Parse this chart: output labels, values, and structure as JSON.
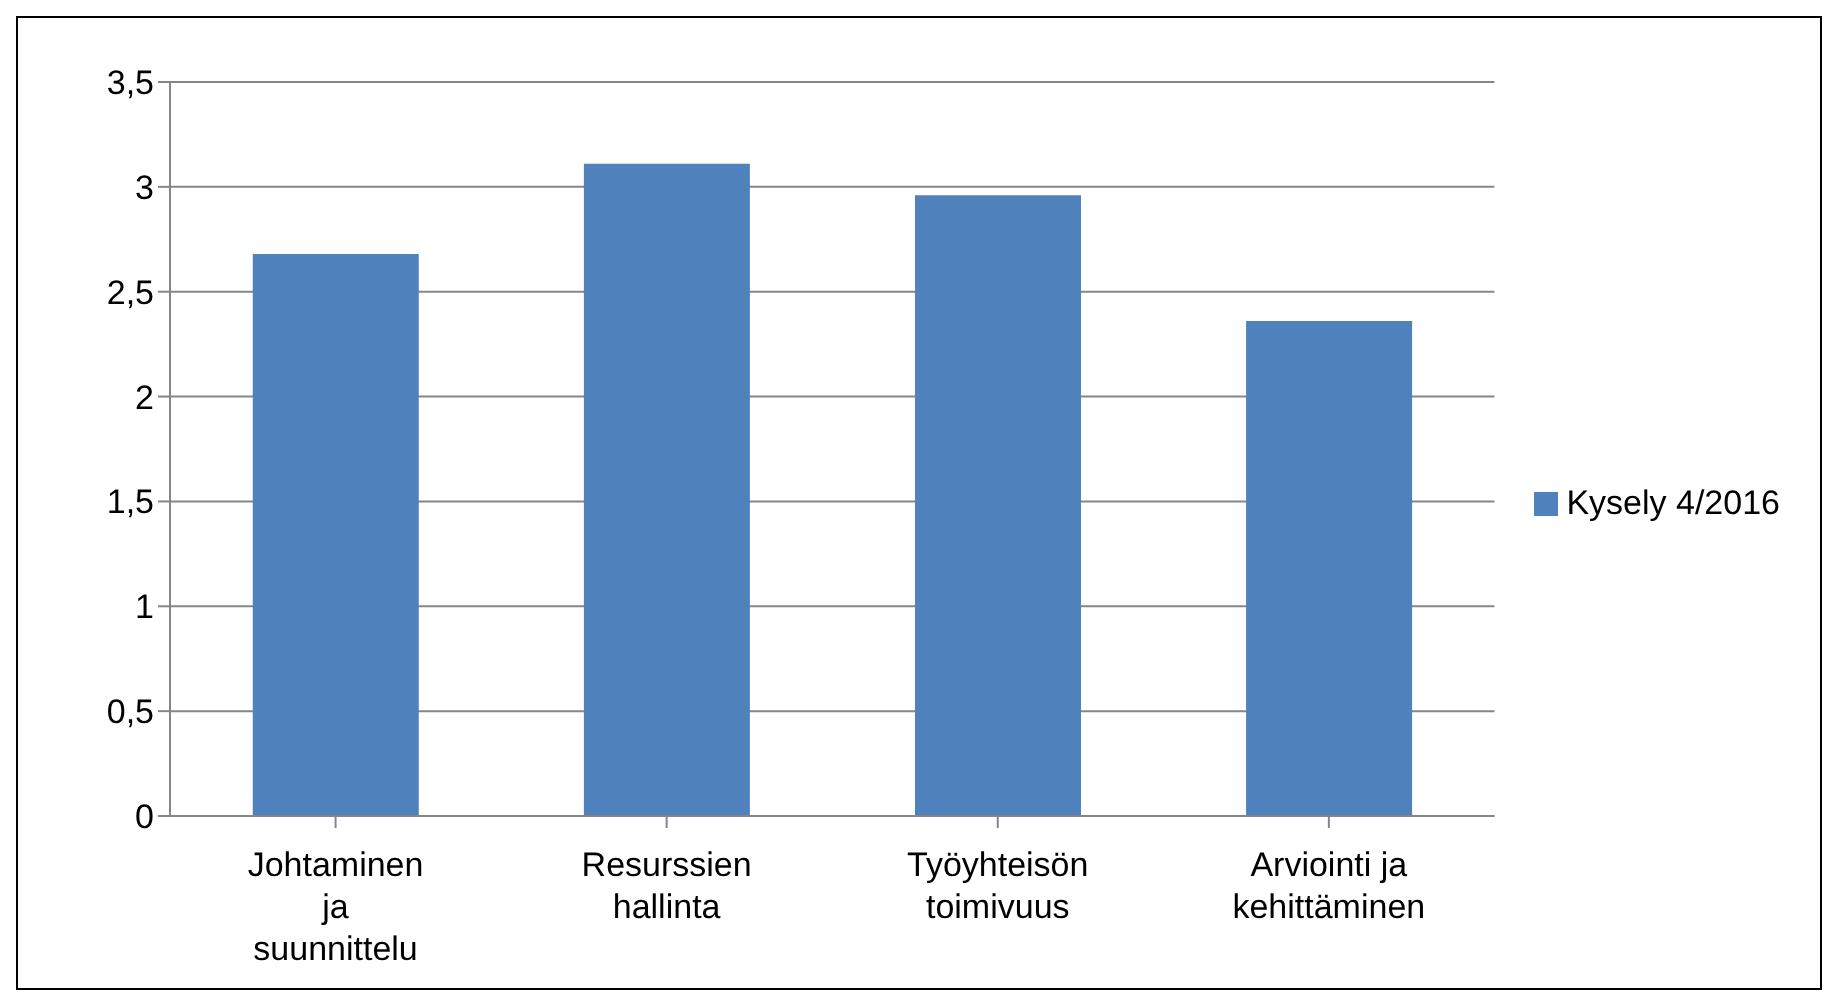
{
  "chart_data": {
    "type": "bar",
    "categories": [
      "Johtaminen ja suunnittelu",
      "Resurssien hallinta",
      "Työyhteisön toimivuus",
      "Arviointi ja kehittäminen"
    ],
    "series": [
      {
        "name": "Kysely 4/2016",
        "color": "#4f81bd",
        "values": [
          2.68,
          3.11,
          2.96,
          2.36
        ]
      }
    ],
    "ylim": [
      0,
      3.5
    ],
    "yticks": [
      {
        "value": 0,
        "label": "0"
      },
      {
        "value": 0.5,
        "label": "0,5"
      },
      {
        "value": 1,
        "label": "1"
      },
      {
        "value": 1.5,
        "label": "1,5"
      },
      {
        "value": 2,
        "label": "2"
      },
      {
        "value": 2.5,
        "label": "2,5"
      },
      {
        "value": 3,
        "label": "3"
      },
      {
        "value": 3.5,
        "label": "3,5"
      }
    ],
    "grid": "y",
    "legend": "right"
  }
}
